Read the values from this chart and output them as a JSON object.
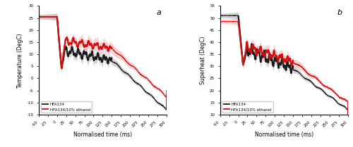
{
  "panel_a": {
    "xlim": [
      -50,
      300
    ],
    "ylim": [
      -15,
      30
    ],
    "yticks": [
      -15,
      -10,
      -5,
      0,
      5,
      10,
      15,
      20,
      25,
      30
    ],
    "xticks": [
      -50,
      -25,
      0,
      25,
      50,
      75,
      100,
      125,
      150,
      175,
      200,
      225,
      250,
      275,
      300
    ],
    "xlabel": "Normalised time (ms)",
    "ylabel": "Temperature (DegC)",
    "label": "a",
    "thick_line_start": 0,
    "thick_line_end": 150,
    "black_color": "#1a1a1a",
    "red_color": "#cc1111",
    "black_shade": "#999999",
    "red_shade": "#f0aaaa"
  },
  "panel_b": {
    "xlim": [
      -50,
      300
    ],
    "ylim": [
      10,
      55
    ],
    "yticks": [
      10,
      15,
      20,
      25,
      30,
      35,
      40,
      45,
      50,
      55
    ],
    "xticks": [
      -50,
      -25,
      0,
      25,
      50,
      75,
      100,
      125,
      150,
      175,
      200,
      225,
      250,
      275,
      300
    ],
    "xlabel": "Normalised time (ms)",
    "ylabel": "Superheat (DegC)",
    "label": "b",
    "thick_line_start": 0,
    "thick_line_end": 150,
    "black_color": "#1a1a1a",
    "red_color": "#cc1111",
    "black_shade": "#999999",
    "red_shade": "#f0aaaa"
  },
  "legend_labels": [
    "HFA134",
    "HFA134/10% ethanol"
  ]
}
